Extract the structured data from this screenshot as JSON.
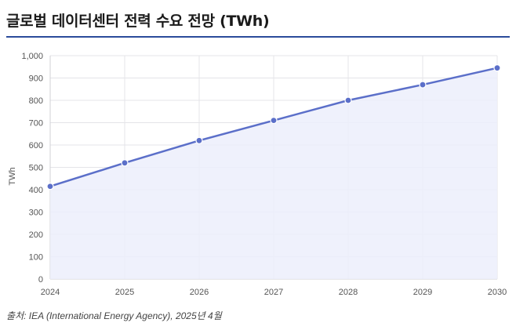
{
  "chart_data": {
    "type": "area",
    "title": "글로벌 데이터센터 전력 수요 전망 (TWh)",
    "xlabel": "",
    "ylabel": "TWh",
    "x": [
      "2024",
      "2025",
      "2026",
      "2027",
      "2028",
      "2029",
      "2030"
    ],
    "series": [
      {
        "name": "TWh",
        "values": [
          415,
          520,
          620,
          710,
          800,
          870,
          945
        ]
      }
    ],
    "ylim": [
      0,
      1000
    ],
    "yticks": [
      0,
      100,
      200,
      300,
      400,
      500,
      600,
      700,
      800,
      900,
      1000
    ],
    "ytick_labels": [
      "0",
      "100",
      "200",
      "300",
      "400",
      "500",
      "600",
      "700",
      "800",
      "900",
      "1,000"
    ],
    "grid": true,
    "colors": {
      "line": "#5b6fc9",
      "fill": "#eceefb",
      "grid": "#e4e4e8",
      "title_rule": "#2b4b9b"
    }
  },
  "source": "출처: IEA (International Energy Agency), 2025년 4월"
}
